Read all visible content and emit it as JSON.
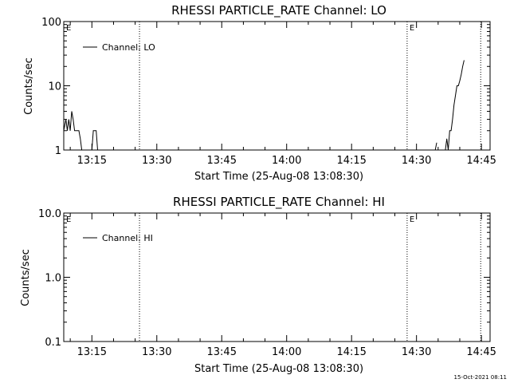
{
  "chart_data": [
    {
      "type": "line",
      "title": "RHESSI PARTICLE_RATE Channel: LO",
      "xlabel": "Start Time (25-Aug-08 13:08:30)",
      "ylabel": "Counts/sec",
      "yscale": "log",
      "ylim": [
        1,
        100
      ],
      "xlim_minutes_after_start": [
        0,
        98.5
      ],
      "x_ticks": [
        "13:15",
        "13:30",
        "13:45",
        "14:00",
        "14:15",
        "14:30",
        "14:45"
      ],
      "y_ticks": [
        "1",
        "10",
        "100"
      ],
      "legend": "top-left",
      "series": [
        {
          "name": "Channel: LO",
          "color": "#000000",
          "segments": [
            {
              "x": [
                "13:08:30",
                "13:09:00",
                "13:09:20",
                "13:09:40",
                "13:10:00",
                "13:10:20",
                "13:10:40",
                "13:11:00",
                "13:11:20",
                "13:11:40",
                "13:12:00",
                "13:12:20",
                "13:12:40"
              ],
              "y": [
                2,
                3,
                2,
                3,
                2,
                4,
                3,
                2,
                2,
                2,
                2,
                1.5,
                1
              ]
            },
            {
              "x": [
                "13:15:00",
                "13:15:20",
                "13:15:40",
                "13:16:00",
                "13:16:20"
              ],
              "y": [
                1,
                2,
                2,
                2,
                1
              ]
            },
            {
              "x": [
                "14:34:20",
                "14:34:40"
              ],
              "y": [
                1,
                1.3
              ]
            },
            {
              "x": [
                "14:36:40",
                "14:37:00",
                "14:37:20",
                "14:37:40",
                "14:38:00",
                "14:38:20",
                "14:38:40",
                "14:39:00",
                "14:39:20",
                "14:39:40",
                "14:40:00",
                "14:40:20",
                "14:40:40",
                "14:41:00"
              ],
              "y": [
                1,
                1.5,
                1,
                2,
                2,
                3,
                5,
                7,
                10,
                10,
                12,
                15,
                20,
                25
              ]
            }
          ]
        }
      ],
      "annotations": [
        {
          "text": "E",
          "x": "13:08:30"
        },
        {
          "text": "E",
          "x": "14:27:50"
        }
      ],
      "vertical_dotted_lines_at": [
        "13:26:00",
        "14:27:50",
        "14:44:50"
      ]
    },
    {
      "type": "line",
      "title": "RHESSI PARTICLE_RATE Channel: HI",
      "xlabel": "Start Time (25-Aug-08 13:08:30)",
      "ylabel": "Counts/sec",
      "yscale": "log",
      "ylim": [
        0.1,
        10
      ],
      "xlim_minutes_after_start": [
        0,
        98.5
      ],
      "x_ticks": [
        "13:15",
        "13:30",
        "13:45",
        "14:00",
        "14:15",
        "14:30",
        "14:45"
      ],
      "y_ticks": [
        "0.1",
        "1.0",
        "10.0"
      ],
      "legend": "top-left",
      "series": [
        {
          "name": "Channel: HI",
          "color": "#000000",
          "segments": []
        }
      ],
      "annotations": [
        {
          "text": "E",
          "x": "13:08:30"
        },
        {
          "text": "E",
          "x": "14:27:50"
        }
      ],
      "vertical_dotted_lines_at": [
        "13:26:00",
        "14:27:50",
        "14:44:50"
      ]
    }
  ],
  "footer": {
    "timestamp": "15-Oct-2021 08:11"
  }
}
